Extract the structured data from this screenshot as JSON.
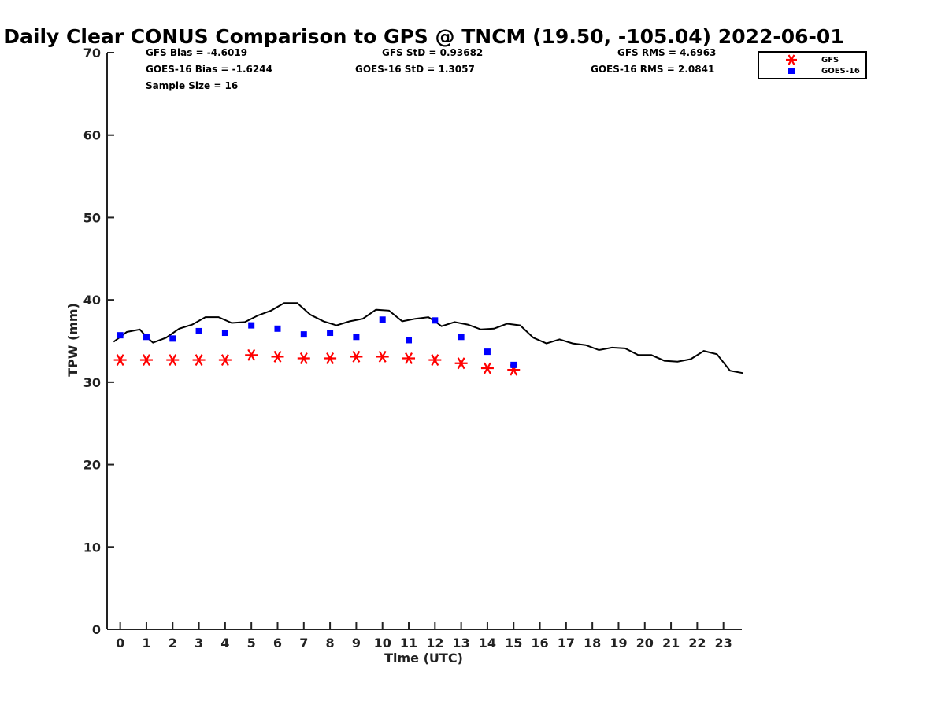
{
  "chart_data": {
    "type": "line",
    "title": "Daily Clear CONUS Comparison to GPS @ TNCM (19.50, -105.04) 2022-06-01",
    "xlabel": "Time (UTC)",
    "ylabel": "TPW (mm)",
    "xlim": [
      -0.5,
      23.7
    ],
    "ylim": [
      0,
      70
    ],
    "x_ticks": [
      "0",
      "1",
      "2",
      "3",
      "4",
      "5",
      "6",
      "7",
      "8",
      "9",
      "10",
      "11",
      "12",
      "13",
      "14",
      "15",
      "16",
      "17",
      "18",
      "19",
      "20",
      "21",
      "22",
      "23"
    ],
    "y_ticks": [
      "0",
      "10",
      "20",
      "30",
      "40",
      "50",
      "60",
      "70"
    ],
    "grid": false,
    "legend_position": "top-right",
    "stats": [
      {
        "label": "GFS Bias = -4.6019"
      },
      {
        "label": "GFS StD = 0.93682"
      },
      {
        "label": "GFS RMS = 4.6963"
      },
      {
        "label": "GOES-16 Bias = -1.6244"
      },
      {
        "label": "GOES-16 StD = 1.3057"
      },
      {
        "label": "GOES-16 RMS = 2.0841"
      },
      {
        "label": "Sample Size = 16"
      }
    ],
    "series": [
      {
        "kind": "line",
        "color": "#000000",
        "x": [
          -0.25,
          0,
          0.25,
          0.75,
          1,
          1.25,
          1.75,
          2.25,
          2.75,
          3.25,
          3.75,
          4.25,
          4.75,
          5.25,
          5.75,
          6.25,
          6.75,
          7.25,
          7.75,
          8.25,
          8.75,
          9.25,
          9.75,
          10.25,
          10.75,
          11.25,
          11.75,
          12,
          12.25,
          12.75,
          13.25,
          13.75,
          14.25,
          14.75,
          15.25,
          15.75,
          16.25,
          16.75,
          17.25,
          17.75,
          18.25,
          18.75,
          19.25,
          19.75,
          20.25,
          20.75,
          21.25,
          21.75,
          22.25,
          22.75,
          23.25,
          23.75
        ],
        "y": [
          34.9,
          35.5,
          36.1,
          36.4,
          35.5,
          34.8,
          35.4,
          36.5,
          37,
          37.9,
          37.9,
          37.2,
          37.3,
          38.1,
          38.7,
          39.6,
          39.6,
          38.2,
          37.4,
          36.9,
          37.4,
          37.7,
          38.8,
          38.7,
          37.4,
          37.7,
          37.9,
          37.4,
          36.8,
          37.3,
          37,
          36.4,
          36.5,
          37.1,
          36.9,
          35.4,
          34.7,
          35.2,
          34.7,
          34.5,
          33.9,
          34.2,
          34.1,
          33.3,
          33.3,
          32.6,
          32.5,
          32.8,
          33.8,
          33.4,
          31.4,
          31.1
        ]
      },
      {
        "name": "GFS",
        "kind": "marker",
        "marker": "asterisk",
        "color": "#ff0000",
        "x": [
          0,
          1,
          2,
          3,
          4,
          5,
          6,
          7,
          8,
          9,
          10,
          11,
          12,
          13,
          14,
          15
        ],
        "y": [
          32.7,
          32.7,
          32.7,
          32.7,
          32.7,
          33.3,
          33.1,
          32.9,
          32.9,
          33.1,
          33.1,
          32.9,
          32.7,
          32.3,
          31.7,
          31.5
        ]
      },
      {
        "name": "GOES-16",
        "kind": "marker",
        "marker": "square",
        "color": "#0000ff",
        "x": [
          0,
          1,
          2,
          3,
          4,
          5,
          6,
          7,
          8,
          9,
          10,
          11,
          12,
          13,
          14,
          15
        ],
        "y": [
          35.7,
          35.5,
          35.3,
          36.2,
          36,
          36.9,
          36.5,
          35.8,
          36,
          35.5,
          37.6,
          35.1,
          37.5,
          35.5,
          33.7,
          32.1
        ]
      }
    ]
  }
}
